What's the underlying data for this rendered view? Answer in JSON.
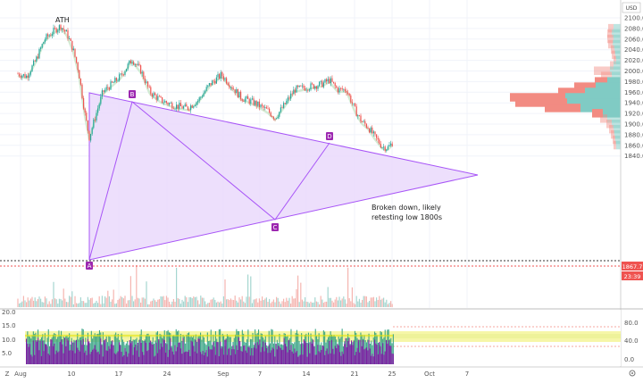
{
  "currency": "USD",
  "price_axis": {
    "labels": [
      "2100.0",
      "2080.0",
      "2060.0",
      "2040.0",
      "2020.0",
      "2000.0",
      "1980.0",
      "1960.0",
      "1940.0",
      "1920.0",
      "1900.0",
      "1880.0",
      "1860.0",
      "1840.0"
    ],
    "current_price": "1867.7",
    "countdown": "23:39"
  },
  "indicator_axis": {
    "labels": [
      "80.0",
      "40.0",
      "0.0"
    ],
    "left_labels": [
      "20.0",
      "15.0",
      "10.0",
      "5.0"
    ]
  },
  "time_axis": {
    "labels": [
      "Aug",
      "10",
      "17",
      "24",
      "Sep",
      "7",
      "14",
      "21",
      "25",
      "Oct",
      "7"
    ]
  },
  "annotations": {
    "ath": "ATH",
    "note_line1": "Broken down, likely",
    "note_line2": "retesting low 1800s",
    "markers": [
      "A",
      "B",
      "C",
      "D"
    ]
  },
  "footer": {
    "timezone_icon": "Z"
  },
  "colors": {
    "up": "#26a69a",
    "down": "#ef5350",
    "pattern_fill": "#e9d8fb",
    "pattern_stroke": "#a855f7",
    "marker": "#9c27b0",
    "volume_profile_up": "#80cbc4",
    "volume_profile_down": "#f28b82",
    "indicator_purple": "#7b1fa2",
    "indicator_green": "#2e9e7e",
    "indicator_band": "#f5f5a0"
  }
}
